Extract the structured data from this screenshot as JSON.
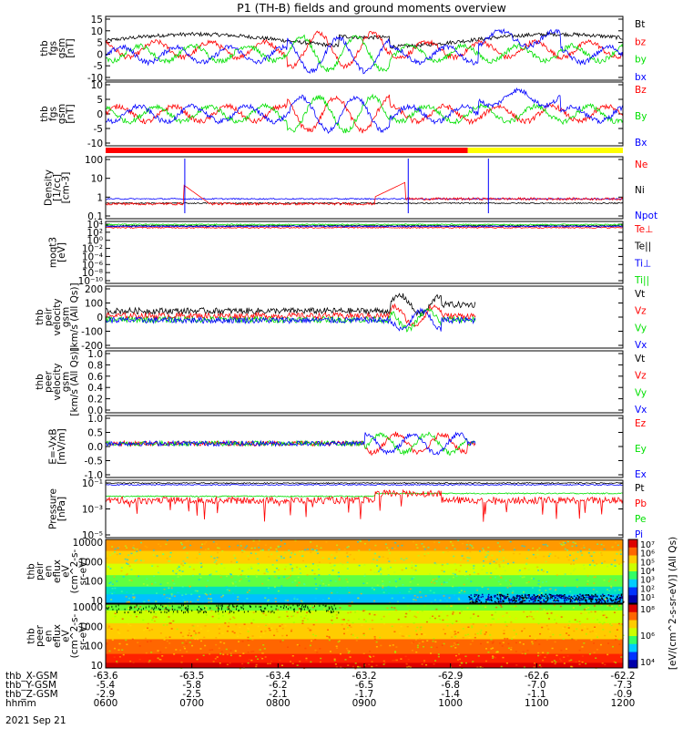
{
  "title": "P1 (TH-B) fields and ground moments overview",
  "date_label": "2021 Sep 21",
  "colors": {
    "black": "#000000",
    "red": "#ff0000",
    "green": "#00e000",
    "blue": "#0000ff",
    "yellow": "#ffff00"
  },
  "chart_data": {
    "type": "line",
    "x_tick_rows": [
      {
        "name": "thb_X-GSM",
        "values": [
          "-63.6",
          "-63.5",
          "-63.4",
          "-63.2",
          "-62.9",
          "-62.6",
          "-62.2"
        ]
      },
      {
        "name": "thb_Y-GSM",
        "values": [
          "-5.4",
          "-5.8",
          "-6.2",
          "-6.5",
          "-6.8",
          "-7.0",
          "-7.3"
        ]
      },
      {
        "name": "thb_Z-GSM",
        "values": [
          "-2.9",
          "-2.5",
          "-2.1",
          "-1.7",
          "-1.4",
          "-1.1",
          "-0.9"
        ]
      },
      {
        "name": "hhmm",
        "values": [
          "0600",
          "0700",
          "0800",
          "0900",
          "1000",
          "1100",
          "1200"
        ]
      }
    ],
    "panels": [
      {
        "id": "fgs-gsm",
        "ylabel": [
          "thb",
          "fgs",
          "gsm",
          "[nT]"
        ],
        "yrange": [
          -10,
          15
        ],
        "ticks": [
          "15",
          "10",
          "5",
          "0",
          "-5",
          "-10"
        ],
        "legend": [
          {
            "name": "Bt",
            "color": "#000000"
          },
          {
            "name": "bz",
            "color": "#ff0000"
          },
          {
            "name": "by",
            "color": "#00e000"
          },
          {
            "name": "bx",
            "color": "#0000ff"
          }
        ]
      },
      {
        "id": "fgs-dsl",
        "ylabel": [
          "thb",
          "fgs",
          "gsm",
          "[nT]"
        ],
        "yrange": [
          -14,
          12
        ],
        "ticks": [
          "10",
          "5",
          "0",
          "-5",
          "-10"
        ],
        "legend": [
          {
            "name": "Bz",
            "color": "#ff0000"
          },
          {
            "name": "By",
            "color": "#00e000"
          },
          {
            "name": "Bx",
            "color": "#0000ff"
          }
        ]
      },
      {
        "id": "density",
        "ylabel": [
          "Density",
          "[1/cc]",
          "[cm-3]"
        ],
        "log": true,
        "yrange": [
          0.05,
          200
        ],
        "ticks": [
          "100",
          "10",
          "1",
          "0.1"
        ],
        "legend": [
          {
            "name": "Ne",
            "color": "#ff0000"
          },
          {
            "name": "Ni",
            "color": "#000000"
          },
          {
            "name": "Npot",
            "color": "#0000ff"
          }
        ]
      },
      {
        "id": "temperature",
        "ylabel": [
          "moqt3",
          "[eV]"
        ],
        "log": true,
        "ticks": [
          "10⁴",
          "10²",
          "10⁰",
          "10⁻²",
          "10⁻⁴",
          "10⁻⁶",
          "10⁻⁸",
          "10⁻¹⁰"
        ],
        "legend": [
          {
            "name": "Te⊥",
            "color": "#ff0000"
          },
          {
            "name": "Te||",
            "color": "#000000"
          },
          {
            "name": "Ti⊥",
            "color": "#0000ff"
          },
          {
            "name": "Ti||",
            "color": "#00e000"
          }
        ]
      },
      {
        "id": "peir-velocity",
        "ylabel": [
          "thb",
          "peir",
          "velocity",
          "gsm",
          "[km/s (All Qs)]"
        ],
        "yrange": [
          -200,
          200
        ],
        "ticks": [
          "200",
          "100",
          "0",
          "-100",
          "-200"
        ],
        "legend": [
          {
            "name": "Vt",
            "color": "#000000"
          },
          {
            "name": "Vz",
            "color": "#ff0000"
          },
          {
            "name": "Vy",
            "color": "#00e000"
          },
          {
            "name": "Vx",
            "color": "#0000ff"
          }
        ]
      },
      {
        "id": "peer-velocity",
        "ylabel": [
          "thb",
          "peer",
          "velocity",
          "gsm",
          "[km/s (All Qs)]"
        ],
        "yrange": [
          0,
          1
        ],
        "ticks": [
          "1.0",
          "0.8",
          "0.6",
          "0.4",
          "0.2",
          "0.0"
        ],
        "legend": [
          {
            "name": "Vt",
            "color": "#000000"
          },
          {
            "name": "Vz",
            "color": "#ff0000"
          },
          {
            "name": "Vy",
            "color": "#00e000"
          },
          {
            "name": "Vx",
            "color": "#0000ff"
          }
        ]
      },
      {
        "id": "efield",
        "ylabel": [
          "E=-VxB",
          "[mV/m]"
        ],
        "yrange": [
          -1,
          1
        ],
        "ticks": [
          "1.0",
          "0.5",
          "0.0",
          "-0.5",
          "-1.0"
        ],
        "legend": [
          {
            "name": "Ez",
            "color": "#ff0000"
          },
          {
            "name": "Ey",
            "color": "#00e000"
          },
          {
            "name": "Ex",
            "color": "#0000ff"
          }
        ]
      },
      {
        "id": "pressure",
        "ylabel": [
          "Pressure",
          "[nPa]"
        ],
        "log": true,
        "ticks": [
          "10⁻¹",
          "10⁻³",
          "10⁻⁵"
        ],
        "legend": [
          {
            "name": "Pt",
            "color": "#000000"
          },
          {
            "name": "Pb",
            "color": "#ff0000"
          },
          {
            "name": "Pe",
            "color": "#00e000"
          },
          {
            "name": "Pi",
            "color": "#0000ff"
          }
        ]
      },
      {
        "id": "peir-spectrogram",
        "ylabel": [
          "thb",
          "peir",
          "en",
          "eflux",
          "eV",
          "(cm^2-s-",
          "sr-eV)"
        ],
        "log": true,
        "ticks": [
          "10000",
          "1000",
          "100",
          "10"
        ],
        "colorbar_ticks": [
          "10⁷",
          "10⁶",
          "10⁵",
          "10⁴",
          "10³",
          "10²",
          "10¹"
        ]
      },
      {
        "id": "peer-spectrogram",
        "ylabel": [
          "thb",
          "peer",
          "en",
          "eflux",
          "eV",
          "(cm^2-s-",
          "sr-eV)"
        ],
        "log": true,
        "ticks": [
          "10000",
          "1000",
          "100",
          "10"
        ],
        "colorbar_ticks": [
          "10⁸",
          "10⁶",
          "10⁴"
        ]
      }
    ],
    "colorbar_label": "[eV/(cm^2-s-sr-eV)] (All Qs)"
  }
}
